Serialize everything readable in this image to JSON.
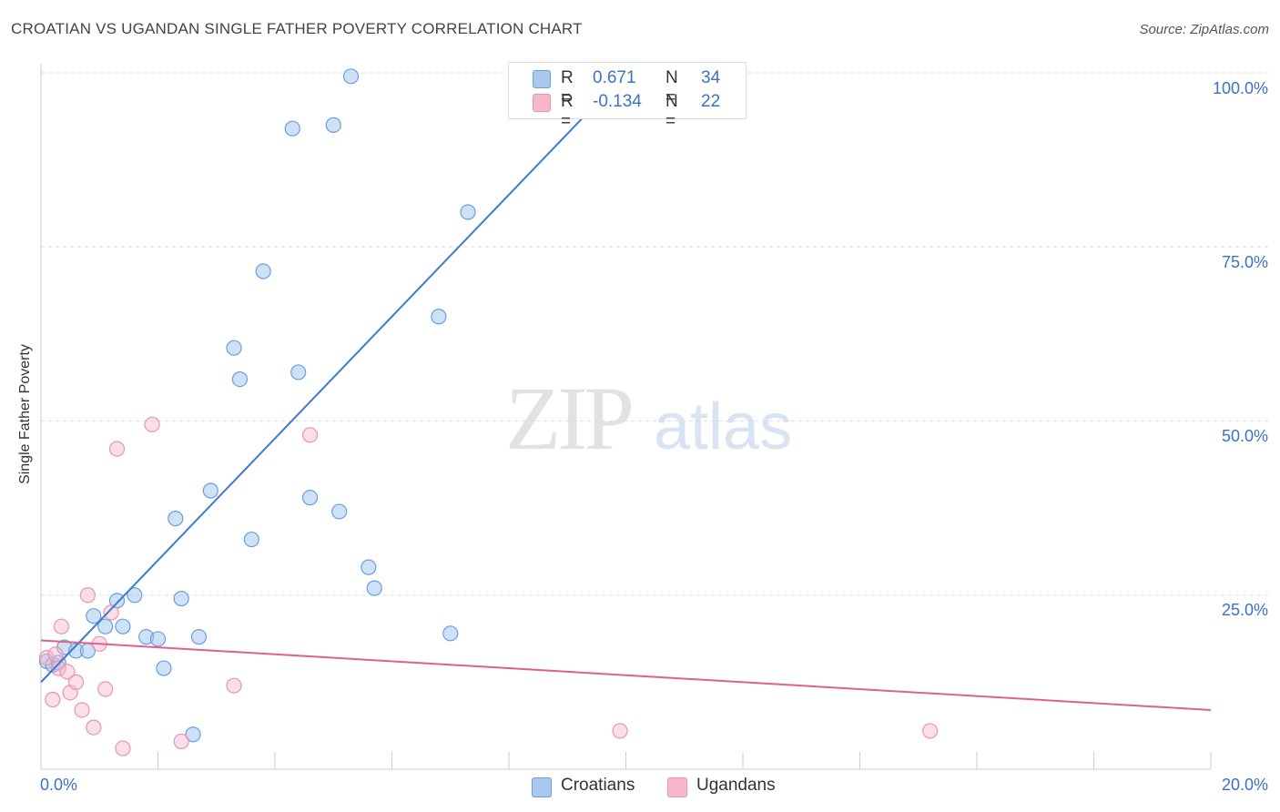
{
  "title": "CROATIAN VS UGANDAN SINGLE FATHER POVERTY CORRELATION CHART",
  "source": "Source: ZipAtlas.com",
  "watermark": {
    "zip": "ZIP",
    "atlas": "atlas"
  },
  "legend_top": [
    {
      "r_label": "R =",
      "r_value": "0.671",
      "n_label": "N =",
      "n_value": "34",
      "color": "#a8c8ee"
    },
    {
      "r_label": "R =",
      "r_value": "-0.134",
      "n_label": "N =",
      "n_value": "22",
      "color": "#f7b8cb"
    }
  ],
  "legend_bottom": [
    {
      "label": "Croatians",
      "color": "#a8c8ee"
    },
    {
      "label": "Ugandans",
      "color": "#f7b8cb"
    }
  ],
  "axis": {
    "x_min_label": "0.0%",
    "x_max_label": "20.0%",
    "y_ticks": [
      "100.0%",
      "75.0%",
      "50.0%",
      "25.0%"
    ]
  },
  "chart_data": {
    "type": "scatter",
    "xlabel": "",
    "ylabel": "Single Father Poverty",
    "xlim": [
      0,
      20
    ],
    "ylim": [
      0,
      102
    ],
    "grid": true,
    "colors": {
      "croatians": "#3a7bd5",
      "ugandans": "#e0608c"
    },
    "series": [
      {
        "name": "Croatians",
        "points": [
          [
            0.1,
            15.5
          ],
          [
            0.2,
            15.0
          ],
          [
            0.3,
            15.3
          ],
          [
            0.4,
            17.5
          ],
          [
            0.6,
            17.0
          ],
          [
            0.8,
            17.0
          ],
          [
            0.9,
            22.0
          ],
          [
            1.1,
            20.5
          ],
          [
            1.3,
            24.2
          ],
          [
            1.4,
            20.5
          ],
          [
            1.6,
            25.0
          ],
          [
            1.8,
            19.0
          ],
          [
            2.0,
            18.7
          ],
          [
            2.1,
            14.5
          ],
          [
            2.3,
            36.0
          ],
          [
            2.4,
            24.5
          ],
          [
            2.6,
            5.0
          ],
          [
            2.7,
            19.0
          ],
          [
            2.9,
            40.0
          ],
          [
            3.3,
            60.5
          ],
          [
            3.4,
            56.0
          ],
          [
            3.6,
            33.0
          ],
          [
            3.8,
            71.5
          ],
          [
            4.3,
            92.0
          ],
          [
            4.4,
            57.0
          ],
          [
            4.6,
            39.0
          ],
          [
            5.0,
            92.5
          ],
          [
            5.1,
            37.0
          ],
          [
            5.3,
            99.5
          ],
          [
            5.6,
            29.0
          ],
          [
            5.7,
            26.0
          ],
          [
            6.8,
            65.0
          ],
          [
            7.0,
            19.5
          ],
          [
            7.3,
            80.0
          ]
        ],
        "trend": {
          "x": [
            0,
            10.0
          ],
          "y": [
            12.5,
            100.0
          ]
        }
      },
      {
        "name": "Ugandans",
        "points": [
          [
            0.1,
            16.0
          ],
          [
            0.2,
            10.0
          ],
          [
            0.3,
            14.5
          ],
          [
            0.35,
            20.5
          ],
          [
            0.45,
            14.0
          ],
          [
            0.5,
            11.0
          ],
          [
            0.6,
            12.5
          ],
          [
            0.7,
            8.5
          ],
          [
            0.8,
            25.0
          ],
          [
            0.9,
            6.0
          ],
          [
            1.0,
            18.0
          ],
          [
            1.1,
            11.5
          ],
          [
            1.2,
            22.5
          ],
          [
            1.3,
            46.0
          ],
          [
            1.4,
            3.0
          ],
          [
            1.9,
            49.5
          ],
          [
            2.4,
            4.0
          ],
          [
            3.3,
            12.0
          ],
          [
            4.6,
            48.0
          ],
          [
            9.9,
            5.5
          ],
          [
            15.2,
            5.5
          ],
          [
            0.25,
            16.5
          ]
        ],
        "trend": {
          "x": [
            0,
            20.0
          ],
          "y": [
            18.5,
            8.5
          ]
        }
      }
    ]
  }
}
